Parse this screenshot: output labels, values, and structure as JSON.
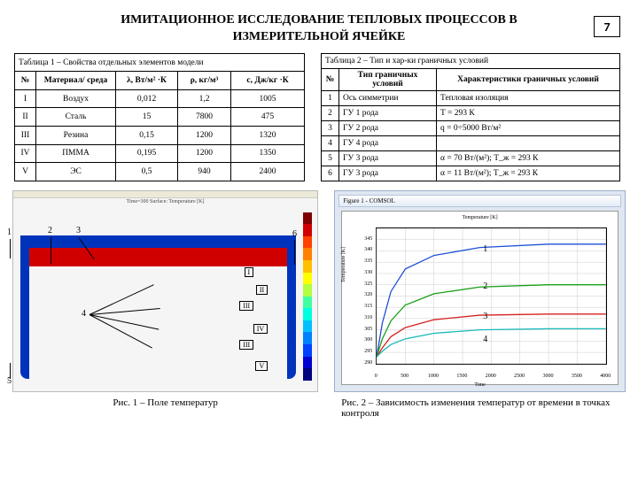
{
  "page_number": "7",
  "title_line1": "ИМИТАЦИОННОЕ ИССЛЕДОВАНИЕ ТЕПЛОВЫХ ПРОЦЕССОВ В",
  "title_line2": "ИЗМЕРИТЕЛЬНОЙ ЯЧЕЙКЕ",
  "table1": {
    "caption": "Таблица 1 – Свойства отдельных элементов модели",
    "h_num": "№",
    "h_mat": "Материал/ среда",
    "h_lambda": "λ, Вт/м² ·К",
    "h_rho": "ρ, кг/м³",
    "h_c": "с, Дж/кг ·К",
    "r1_n": "I",
    "r1_m": "Воздух",
    "r1_l": "0,012",
    "r1_r": "1,2",
    "r1_c": "1005",
    "r2_n": "II",
    "r2_m": "Сталь",
    "r2_l": "15",
    "r2_r": "7800",
    "r2_c": "475",
    "r3_n": "III",
    "r3_m": "Резина",
    "r3_l": "0,15",
    "r3_r": "1200",
    "r3_c": "1320",
    "r4_n": "IV",
    "r4_m": "ПММА",
    "r4_l": "0,195",
    "r4_r": "1200",
    "r4_c": "1350",
    "r5_n": "V",
    "r5_m": "ЭС",
    "r5_l": "0,5",
    "r5_r": "940",
    "r5_c": "2400"
  },
  "table2": {
    "caption": "Таблица 2 – Тип и хар-ки граничных условий",
    "h_num": "№",
    "h_type": "Тип граничных условий",
    "h_char": "Характеристики граничных условий",
    "r1_n": "1",
    "r1_t": "Ось симметрии",
    "r1_c": "Тепловая изоляция",
    "r2_n": "2",
    "r2_t": "ГУ 1 рода",
    "r2_c": "T = 293 К",
    "r3_n": "3",
    "r3_t": "ГУ 2 рода",
    "r3_c": "q = 0÷5000 Вт/м²",
    "r4_n": "4",
    "r4_t": "ГУ 4 рода",
    "r4_c": "",
    "r5_n": "5",
    "r5_t": "ГУ 3 рода",
    "r5_c": "α = 70 Вт/(м²);  T_ж = 293 К",
    "r6_n": "6",
    "r6_t": "ГУ 3 рода",
    "r6_c": "α = 11 Вт/(м²);  T_ж = 293 К"
  },
  "fig1": {
    "caption": "Рис. 1 – Поле температур",
    "plot_title": "Time=300   Surface: Temperature [K]",
    "bands": [
      {
        "color": "#0033bb",
        "h": "9%"
      },
      {
        "color": "#d10000",
        "h": "22%"
      },
      {
        "color": "#ff6a00",
        "h": "9%"
      },
      {
        "color": "#ffbe00",
        "h": "7%"
      },
      {
        "color": "#ffe400",
        "h": "7%"
      },
      {
        "color": "#b8ff41",
        "h": "7%"
      },
      {
        "color": "#40ff9e",
        "h": "7%"
      },
      {
        "color": "#00e0ff",
        "h": "7%"
      },
      {
        "color": "#00a0ff",
        "h": "7%"
      },
      {
        "color": "#0060ff",
        "h": "9%"
      },
      {
        "color": "#0033bb",
        "h": "9%"
      }
    ],
    "colorbar": [
      "#800000",
      "#d10000",
      "#ff4000",
      "#ff8000",
      "#ffc000",
      "#ffff00",
      "#b0ff40",
      "#40ffa0",
      "#00ffe0",
      "#00c0ff",
      "#0080ff",
      "#0040ff",
      "#0000d0",
      "#000080"
    ],
    "romans": {
      "I": "I",
      "II": "II",
      "III": "III",
      "IV": "IV",
      "V": "V"
    },
    "nums": {
      "n1": "1",
      "n2": "2",
      "n3": "3",
      "n4": "4",
      "n5": "5",
      "n6": "6"
    }
  },
  "fig2": {
    "caption": "Рис. 2 – Зависимость изменения температур от времени в точках контроля",
    "window_title": "Figure 1 - COMSOL",
    "chart_title": "Temperature [K]",
    "xlabel": "Time",
    "ylabel": "Temperature [K]",
    "ylim": [
      290,
      350
    ],
    "xlim": [
      0,
      4000
    ],
    "yticks": [
      "290",
      "295",
      "300",
      "305",
      "310",
      "315",
      "320",
      "325",
      "330",
      "335",
      "340",
      "345"
    ],
    "xticks": [
      "0",
      "500",
      "1000",
      "1500",
      "2000",
      "2500",
      "3000",
      "3500",
      "4000"
    ],
    "curves": {
      "c1": {
        "color": "#1e50d6",
        "label": "1",
        "points": [
          [
            0,
            293
          ],
          [
            100,
            308
          ],
          [
            250,
            322
          ],
          [
            500,
            332
          ],
          [
            1000,
            338
          ],
          [
            1800,
            341.5
          ],
          [
            3000,
            343
          ],
          [
            4000,
            343
          ]
        ]
      },
      "c2": {
        "color": "#17a017",
        "label": "2",
        "points": [
          [
            0,
            293
          ],
          [
            100,
            301
          ],
          [
            250,
            309
          ],
          [
            500,
            316
          ],
          [
            1000,
            321
          ],
          [
            1800,
            324
          ],
          [
            3000,
            325
          ],
          [
            4000,
            325
          ]
        ]
      },
      "c3": {
        "color": "#d62020",
        "label": "3",
        "points": [
          [
            0,
            293
          ],
          [
            100,
            297
          ],
          [
            250,
            302
          ],
          [
            500,
            306
          ],
          [
            1000,
            309.5
          ],
          [
            1800,
            311.5
          ],
          [
            3000,
            312
          ],
          [
            4000,
            312
          ]
        ]
      },
      "c4": {
        "color": "#15b9b9",
        "label": "4",
        "points": [
          [
            0,
            293
          ],
          [
            100,
            295.5
          ],
          [
            250,
            298.5
          ],
          [
            500,
            301
          ],
          [
            1000,
            303.5
          ],
          [
            1800,
            305
          ],
          [
            3000,
            305.5
          ],
          [
            4000,
            305.5
          ]
        ]
      }
    }
  }
}
